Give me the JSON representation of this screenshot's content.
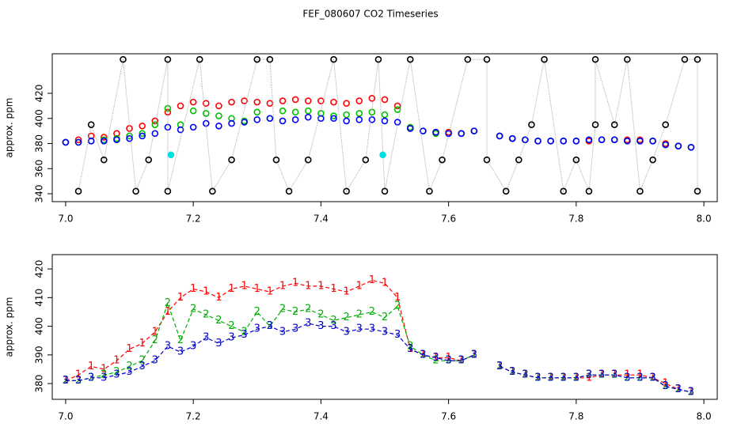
{
  "title": "FEF_080607  CO2 Timeseries",
  "chart_data": [
    {
      "type": "scatter",
      "ylabel": "approx. ppm",
      "xlim": [
        6.979,
        8.021
      ],
      "ylim": [
        333.7,
        451.5
      ],
      "xticks": [
        {
          "value": 7,
          "label": "7.0"
        },
        7.2,
        7.4,
        7.6,
        7.8,
        {
          "value": 8,
          "label": "8.0"
        }
      ],
      "yticks": [
        340,
        360,
        380,
        400,
        420
      ],
      "x": [
        7.0,
        7.02,
        7.04,
        7.06,
        7.08,
        7.1,
        7.12,
        7.14,
        7.16,
        7.18,
        7.2,
        7.22,
        7.24,
        7.26,
        7.28,
        7.3,
        7.32,
        7.34,
        7.36,
        7.38,
        7.4,
        7.42,
        7.44,
        7.46,
        7.48,
        7.5,
        7.52,
        7.54,
        7.56,
        7.58,
        7.6,
        7.62,
        7.64,
        7.66,
        7.68,
        7.7,
        7.72,
        7.74,
        7.76,
        7.78,
        7.8,
        7.82,
        7.84,
        7.86,
        7.88,
        7.9,
        7.92,
        7.94,
        7.96,
        7.98
      ],
      "series": [
        {
          "color": "#ff0000",
          "values": [
            381,
            383,
            386,
            385,
            388,
            392,
            394,
            398,
            405,
            410,
            413,
            412,
            410,
            413,
            414,
            413,
            412,
            414,
            415,
            414,
            414,
            413,
            412,
            414,
            416,
            415,
            410,
            392,
            390,
            389,
            389,
            388,
            390,
            null,
            386,
            384,
            383,
            382,
            382,
            382,
            382,
            382,
            383,
            383,
            383,
            383,
            382,
            380,
            378,
            377
          ]
        },
        {
          "color": "#00c000",
          "values": [
            381,
            381,
            382,
            383,
            384,
            386,
            388,
            395,
            408,
            395,
            406,
            404,
            402,
            400,
            398,
            405,
            400,
            406,
            405,
            406,
            404,
            402,
            403,
            404,
            405,
            403,
            407,
            393,
            390,
            388,
            388,
            388,
            390,
            null,
            386,
            384,
            383,
            382,
            382,
            382,
            382,
            383,
            383,
            383,
            382,
            382,
            382,
            379,
            378,
            377
          ]
        },
        {
          "color": "#0000ff",
          "values": [
            381,
            381,
            382,
            382,
            383,
            384,
            386,
            388,
            393,
            391,
            393,
            396,
            394,
            396,
            397,
            399,
            400,
            398,
            399,
            401,
            400,
            400,
            398,
            399,
            399,
            398,
            397,
            392,
            390,
            389,
            388,
            388,
            390,
            null,
            386,
            384,
            383,
            382,
            382,
            382,
            382,
            383,
            383,
            383,
            382,
            382,
            382,
            379,
            378,
            377
          ]
        },
        {
          "color": "#000000",
          "line_color": "#aaaaaa",
          "x": [
            7.02,
            7.04,
            7.06,
            7.09,
            7.11,
            7.13,
            7.16,
            7.16,
            7.21,
            7.23,
            7.26,
            7.3,
            7.32,
            7.33,
            7.35,
            7.38,
            7.42,
            7.44,
            7.47,
            7.49,
            7.5,
            7.54,
            7.57,
            7.59,
            7.63,
            7.66,
            7.66,
            7.69,
            7.71,
            7.73,
            7.75,
            7.78,
            7.8,
            7.82,
            7.83,
            7.83,
            7.86,
            7.88,
            7.9,
            7.92,
            7.94,
            7.97,
            7.99,
            7.99
          ],
          "values": [
            342,
            395,
            367,
            447,
            342,
            367,
            447,
            342,
            447,
            342,
            367,
            447,
            447,
            367,
            342,
            367,
            447,
            342,
            367,
            447,
            342,
            447,
            342,
            367,
            447,
            447,
            367,
            342,
            367,
            395,
            447,
            342,
            367,
            342,
            395,
            447,
            395,
            447,
            342,
            367,
            395,
            447,
            447,
            342
          ]
        },
        {
          "color": "#00e0e0",
          "fill": true,
          "x": [
            7.165,
            7.497
          ],
          "values": [
            371,
            371
          ]
        }
      ]
    },
    {
      "type": "line",
      "ylabel": "approx. ppm",
      "xlim": [
        6.979,
        8.021
      ],
      "ylim": [
        374.5,
        425
      ],
      "xticks": [
        {
          "value": 7,
          "label": "7.0"
        },
        7.2,
        7.4,
        7.6,
        7.8,
        {
          "value": 8,
          "label": "8.0"
        }
      ],
      "yticks": [
        380,
        390,
        400,
        410,
        420
      ],
      "x": [
        7.0,
        7.02,
        7.04,
        7.06,
        7.08,
        7.1,
        7.12,
        7.14,
        7.16,
        7.18,
        7.2,
        7.22,
        7.24,
        7.26,
        7.28,
        7.3,
        7.32,
        7.34,
        7.36,
        7.38,
        7.4,
        7.42,
        7.44,
        7.46,
        7.48,
        7.5,
        7.52,
        7.54,
        7.56,
        7.58,
        7.6,
        7.62,
        7.64,
        7.66,
        7.68,
        7.7,
        7.72,
        7.74,
        7.76,
        7.78,
        7.8,
        7.82,
        7.84,
        7.86,
        7.88,
        7.9,
        7.92,
        7.94,
        7.96,
        7.98
      ],
      "series": [
        {
          "name": "1",
          "color": "#ff0000",
          "values": [
            381,
            383,
            386,
            385,
            388,
            392,
            394,
            398,
            405,
            410,
            413,
            412,
            410,
            413,
            414,
            413,
            412,
            414,
            415,
            414,
            414,
            413,
            412,
            414,
            416,
            415,
            410,
            392,
            390,
            389,
            389,
            388,
            390,
            null,
            386,
            384,
            383,
            382,
            382,
            382,
            382,
            382,
            383,
            383,
            383,
            383,
            382,
            380,
            378,
            377
          ]
        },
        {
          "name": "2",
          "color": "#00b000",
          "values": [
            381,
            381,
            382,
            383,
            384,
            386,
            388,
            395,
            408,
            395,
            406,
            404,
            402,
            400,
            398,
            405,
            400,
            406,
            405,
            406,
            404,
            402,
            403,
            404,
            405,
            403,
            407,
            393,
            390,
            388,
            388,
            388,
            390,
            null,
            386,
            384,
            383,
            382,
            382,
            382,
            382,
            383,
            383,
            383,
            382,
            382,
            382,
            379,
            378,
            377
          ]
        },
        {
          "name": "3",
          "color": "#0000cc",
          "values": [
            381,
            381,
            382,
            382,
            383,
            384,
            386,
            388,
            393,
            391,
            393,
            396,
            394,
            396,
            397,
            399,
            400,
            398,
            399,
            401,
            400,
            400,
            398,
            399,
            399,
            398,
            397,
            392,
            390,
            389,
            388,
            388,
            390,
            null,
            386,
            384,
            383,
            382,
            382,
            382,
            382,
            383,
            383,
            383,
            382,
            382,
            382,
            379,
            378,
            377
          ]
        }
      ]
    }
  ]
}
